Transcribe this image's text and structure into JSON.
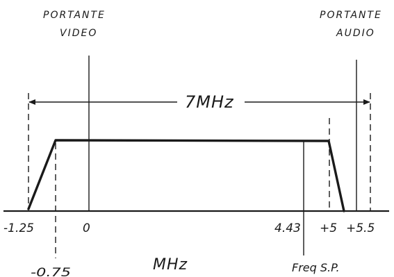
{
  "carriers": {
    "video_line1": "PORTANTE",
    "video_line2": "VIDEO",
    "audio_line1": "PORTANTE",
    "audio_line2": "AUDIO"
  },
  "bandwidth_label": "7MHz",
  "axis": {
    "unit": "MHz",
    "ticks": [
      {
        "value": -1.25,
        "label": "-1.25"
      },
      {
        "value": -0.75,
        "label": "-0.75"
      },
      {
        "value": 0,
        "label": "0"
      },
      {
        "value": 4.43,
        "label": "4.43"
      },
      {
        "value": 5,
        "label": "+5"
      },
      {
        "value": 5.5,
        "label": "+5.5"
      }
    ]
  },
  "subcarrier_label": "Freq S.P.",
  "colors": {
    "ink": "#1a1a1a",
    "paper": "#ffffff"
  }
}
